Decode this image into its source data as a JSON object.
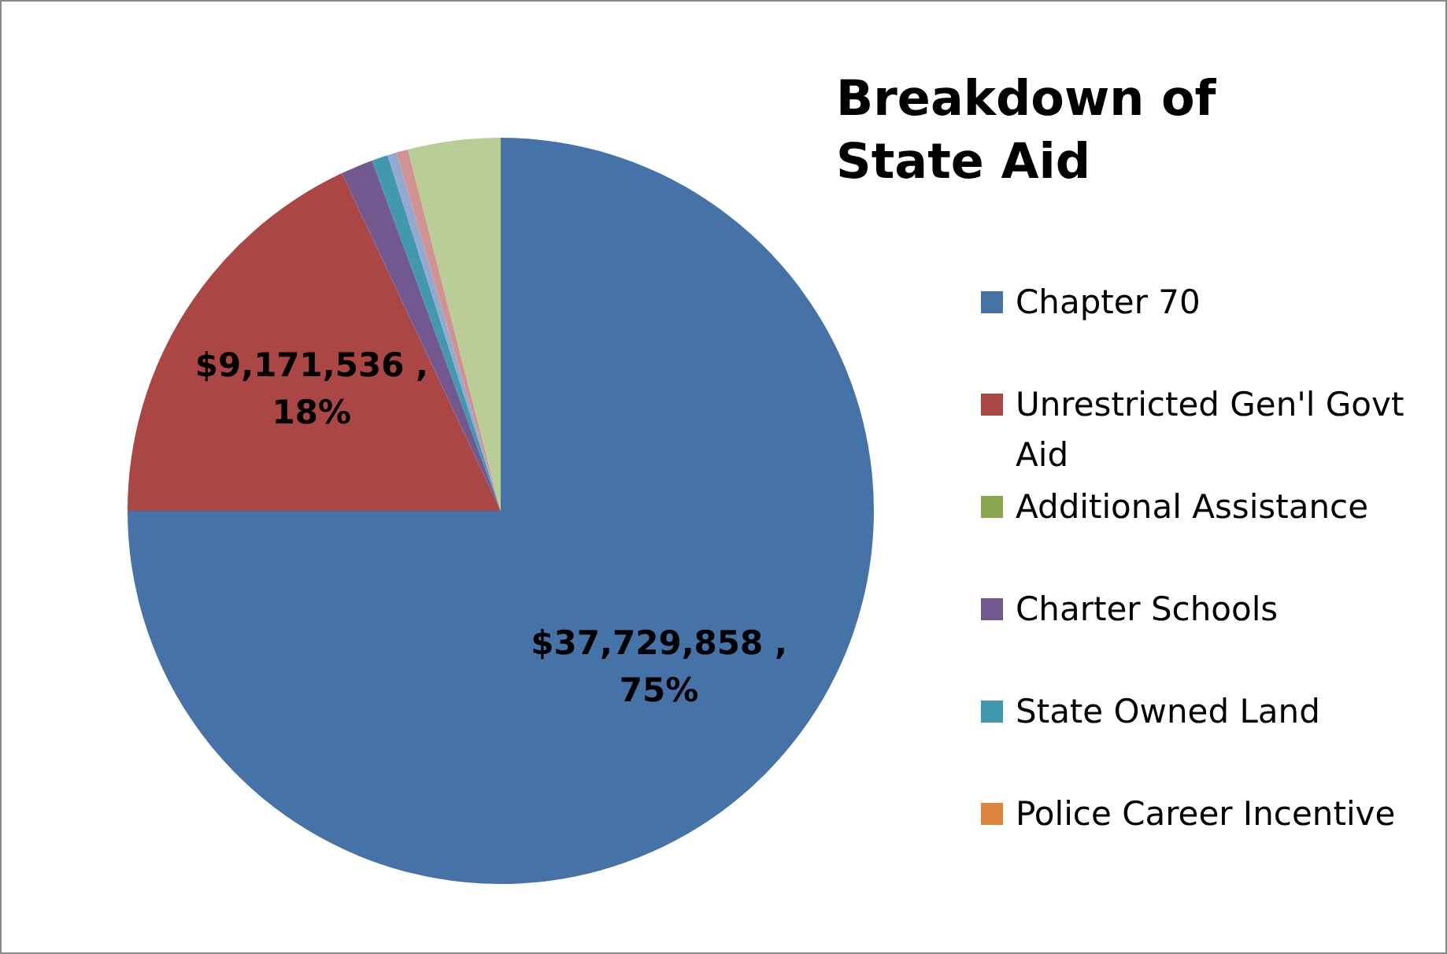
{
  "chart_data": {
    "type": "pie",
    "title": "Breakdown of State Aid",
    "legend": "right",
    "categories": [
      "Chapter 70",
      "Unrestricted Gen'l Govt Aid",
      "Additional Assistance",
      "Charter Schools",
      "State Owned Land",
      "Police Career Incentive",
      null,
      null,
      null
    ],
    "values": [
      75,
      18,
      0,
      1.4,
      0.7,
      0,
      0.4,
      0.5,
      4.0
    ],
    "colors": [
      "#4572a7",
      "#aa4643",
      "#89a54e",
      "#71588f",
      "#4198af",
      "#db843d",
      "#93a9cf",
      "#d19392",
      "#b9cd96"
    ],
    "value_labels": [
      "$37,729,858 , 75%",
      "$9,171,536 , 18%",
      null,
      null,
      null,
      null,
      null,
      null,
      null
    ]
  }
}
